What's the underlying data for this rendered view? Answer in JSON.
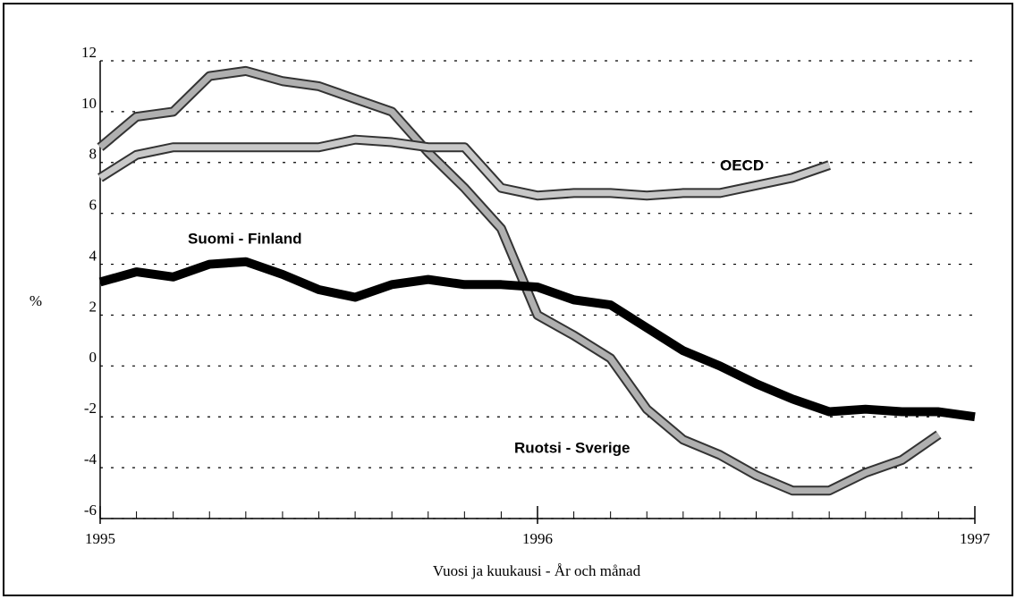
{
  "chart_data": {
    "type": "line",
    "x": [
      1995,
      1995.083,
      1995.167,
      1995.25,
      1995.333,
      1995.417,
      1995.5,
      1995.583,
      1995.667,
      1995.75,
      1995.833,
      1995.917,
      1996,
      1996.083,
      1996.167,
      1996.25,
      1996.333,
      1996.417,
      1996.5,
      1996.583,
      1996.667,
      1996.75,
      1996.833,
      1996.917,
      1997
    ],
    "series": [
      {
        "name": "Suomi - Finland",
        "color": "#000000",
        "values": [
          3.3,
          3.7,
          3.5,
          4.0,
          4.1,
          3.6,
          3.0,
          2.7,
          3.2,
          3.4,
          3.2,
          3.2,
          3.1,
          2.6,
          2.4,
          1.5,
          0.6,
          0.0,
          -0.7,
          -1.3,
          -1.8,
          -1.7,
          -1.8,
          -1.8,
          -2.0
        ]
      },
      {
        "name": "OECD",
        "color": "#c8c8c8",
        "values": [
          7.4,
          8.3,
          8.6,
          8.6,
          8.6,
          8.6,
          8.6,
          8.9,
          8.8,
          8.6,
          8.6,
          7.0,
          6.7,
          6.8,
          6.8,
          6.7,
          6.8,
          6.8,
          7.1,
          7.4,
          7.9,
          null,
          null,
          null,
          null
        ]
      },
      {
        "name": "Ruotsi - Sverige",
        "color": "#b0b0b0",
        "values": [
          8.6,
          9.8,
          10.0,
          11.4,
          11.6,
          11.2,
          11.0,
          10.5,
          10.0,
          8.4,
          7.0,
          5.4,
          2.0,
          1.2,
          0.3,
          -1.7,
          -2.9,
          -3.5,
          -4.3,
          -4.9,
          -4.9,
          -4.2,
          -3.7,
          -2.7,
          null
        ]
      }
    ],
    "ylabel": "%",
    "xlabel": "Vuosi ja kuukausi - År och månad",
    "xlim": [
      1995,
      1997
    ],
    "xticks": [
      1995,
      1996,
      1997
    ],
    "ylim": [
      -6,
      12
    ],
    "yticks": [
      -6,
      -4,
      -2,
      0,
      2,
      4,
      6,
      8,
      10,
      12
    ],
    "grid": true
  }
}
